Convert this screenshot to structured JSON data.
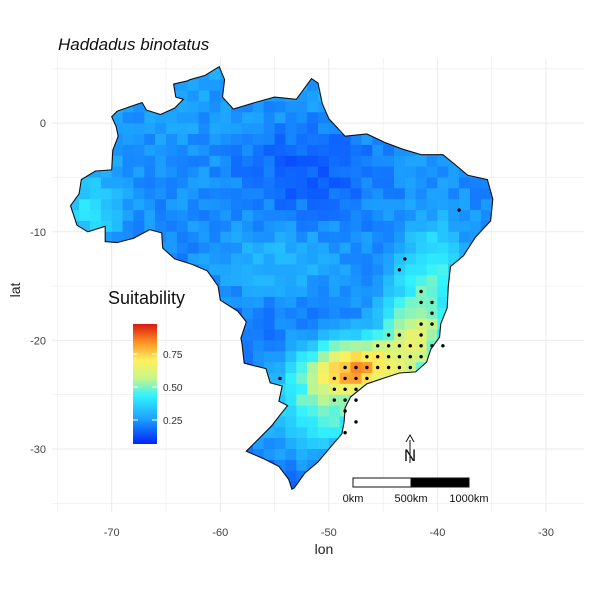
{
  "title": "Haddadus binotatus",
  "axes": {
    "xlabel": "lon",
    "ylabel": "lat",
    "xticks": [
      "-70",
      "-60",
      "-50",
      "-40",
      "-30"
    ],
    "yticks": [
      "0",
      "-10",
      "-20",
      "-30"
    ]
  },
  "legend": {
    "title": "Suitability",
    "ticks": [
      "0.75",
      "0.50",
      "0.25"
    ]
  },
  "north_arrow": {
    "label": "N"
  },
  "scale_bar": {
    "labels": [
      "0km",
      "500km",
      "1000km"
    ]
  },
  "chart_data": {
    "type": "heatmap",
    "title": "Haddadus binotatus",
    "xlabel": "lon",
    "ylabel": "lat",
    "xlim": [
      -75.5,
      -26.5
    ],
    "ylim": [
      -35.8,
      6.0
    ],
    "grid": true,
    "colorscale": "jet-like (blue-cyan-yellow-orange-red)",
    "value_range": [
      0,
      1
    ],
    "legend_title": "Suitability",
    "legend_placement": "left, mid-height",
    "occurrence_points": [
      [
        -43.0,
        -12.5
      ],
      [
        -43.5,
        -13.5
      ],
      [
        -41.5,
        -15.5
      ],
      [
        -41.5,
        -16.5
      ],
      [
        -40.5,
        -16.5
      ],
      [
        -40.5,
        -17.5
      ],
      [
        -40.5,
        -18.5
      ],
      [
        -41.5,
        -18.5
      ],
      [
        -39.5,
        -20.5
      ],
      [
        -40.5,
        -20.5
      ],
      [
        -41.5,
        -20.5
      ],
      [
        -42.5,
        -20.5
      ],
      [
        -43.5,
        -20.5
      ],
      [
        -44.5,
        -20.5
      ],
      [
        -45.5,
        -20.5
      ],
      [
        -41.5,
        -19.5
      ],
      [
        -43.5,
        -19.5
      ],
      [
        -44.5,
        -19.5
      ],
      [
        -41.5,
        -21.5
      ],
      [
        -42.5,
        -21.5
      ],
      [
        -43.5,
        -21.5
      ],
      [
        -44.5,
        -21.5
      ],
      [
        -45.5,
        -21.5
      ],
      [
        -46.5,
        -21.5
      ],
      [
        -42.5,
        -22.5
      ],
      [
        -43.5,
        -22.5
      ],
      [
        -44.5,
        -22.5
      ],
      [
        -45.5,
        -22.5
      ],
      [
        -46.5,
        -22.5
      ],
      [
        -47.5,
        -22.5
      ],
      [
        -48.5,
        -22.5
      ],
      [
        -46.5,
        -23.5
      ],
      [
        -47.5,
        -23.5
      ],
      [
        -48.5,
        -23.5
      ],
      [
        -49.5,
        -23.5
      ],
      [
        -47.5,
        -24.5
      ],
      [
        -48.5,
        -24.5
      ],
      [
        -49.5,
        -24.5
      ],
      [
        -47.5,
        -25.5
      ],
      [
        -48.5,
        -25.5
      ],
      [
        -49.5,
        -25.5
      ],
      [
        -48.5,
        -26.5
      ],
      [
        -54.5,
        -23.5
      ],
      [
        -47.5,
        -27.5
      ],
      [
        -48.5,
        -28.5
      ],
      [
        -38.0,
        -8.0
      ]
    ]
  }
}
